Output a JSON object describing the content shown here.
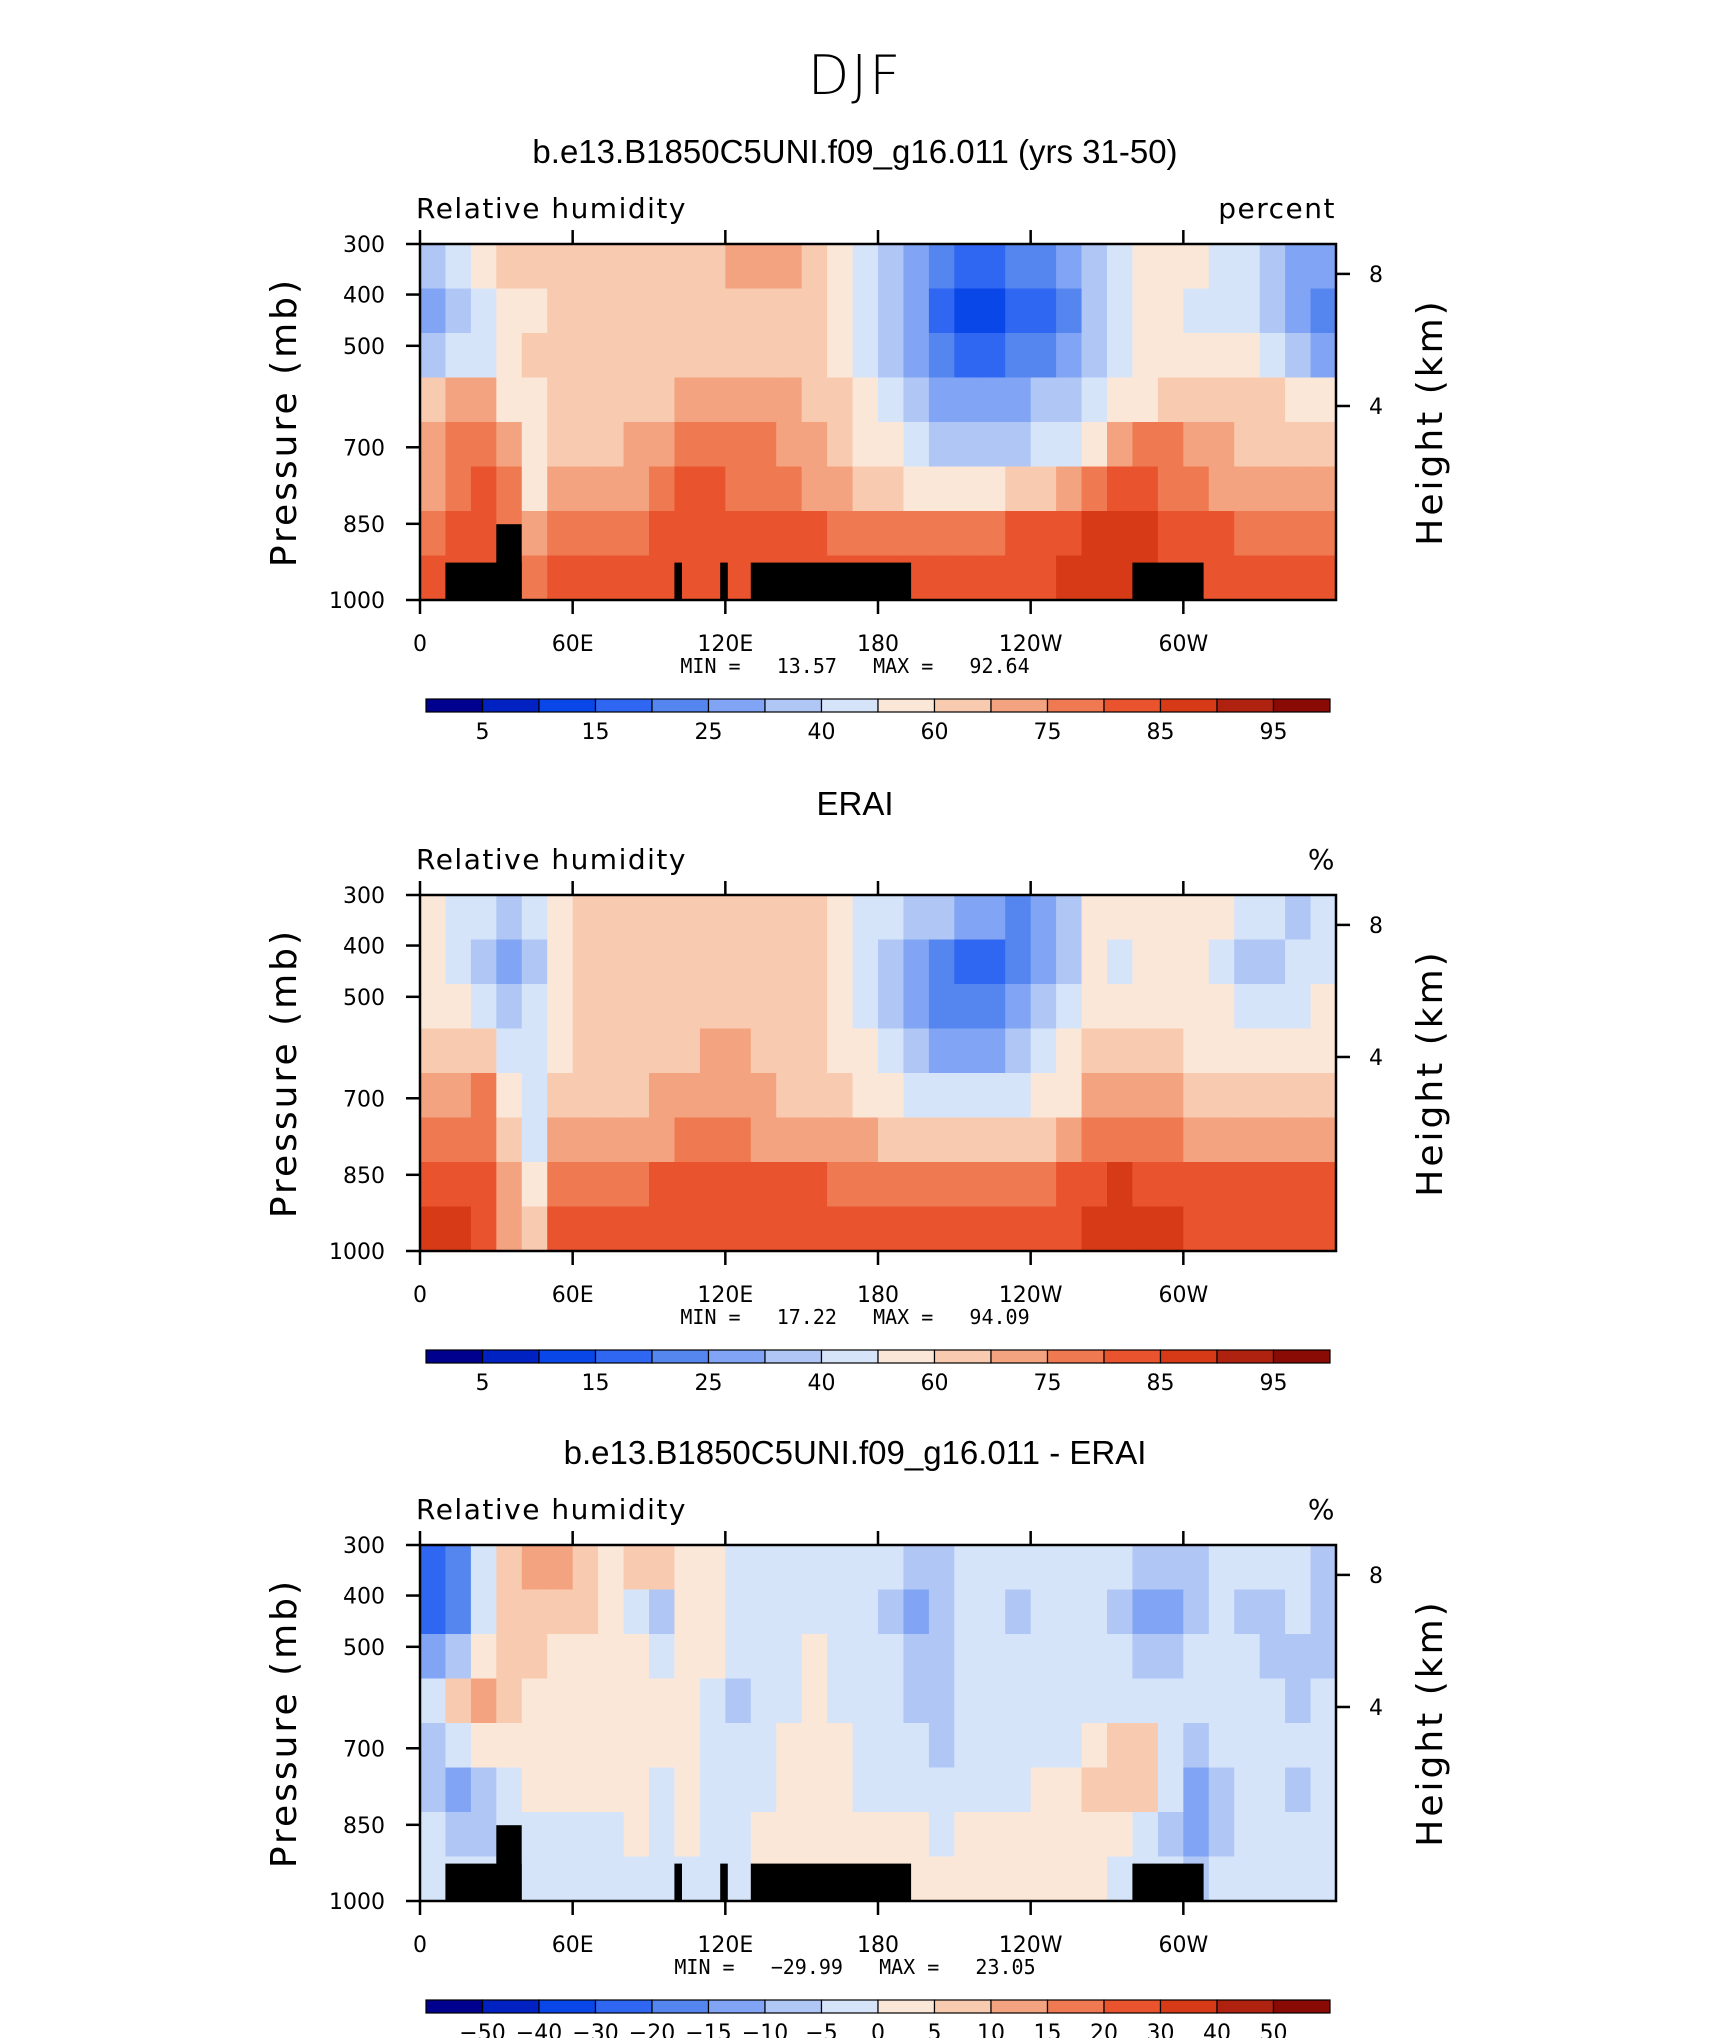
{
  "figure": {
    "title": "DJF"
  },
  "chart_data": [
    {
      "type": "heatmap",
      "title": "b.e13.B1850C5UNI.f09_g16.011 (yrs 31-50)",
      "left_label": "Relative humidity",
      "right_label": "percent",
      "ylabel": "Pressure (mb)",
      "ylabel_right": "Height (km)",
      "x_ticks": [
        "0",
        "60E",
        "120E",
        "180",
        "120W",
        "60W"
      ],
      "y_ticks": [
        "300",
        "400",
        "500",
        "700",
        "850",
        "1000"
      ],
      "y2_ticks": [
        "8",
        "4"
      ],
      "stats": {
        "min_label": "MIN =",
        "min": "13.57",
        "max_label": "MAX =",
        "max": "92.64"
      },
      "colorbar": {
        "labels": [
          "5",
          "15",
          "25",
          "40",
          "60",
          "75",
          "85",
          "95"
        ],
        "colors": [
          "#00008f",
          "#0022c2",
          "#0a47e8",
          "#2f66f2",
          "#5585ee",
          "#81a5f4",
          "#b0c6f5",
          "#d6e4fa",
          "#fbe7d8",
          "#f8cbb0",
          "#f3a37f",
          "#ef7a52",
          "#e9532e",
          "#d63a17",
          "#b02210",
          "#8a0a06"
        ]
      },
      "field": [
        [
          6,
          7,
          8,
          9,
          9,
          9,
          9,
          9,
          9,
          9,
          9,
          9,
          10,
          10,
          10,
          9,
          8,
          7,
          6,
          5,
          4,
          3,
          3,
          4,
          4,
          5,
          6,
          7,
          8,
          8,
          8,
          7,
          7,
          6,
          5,
          5
        ],
        [
          5,
          6,
          7,
          8,
          8,
          9,
          9,
          9,
          9,
          9,
          9,
          9,
          9,
          9,
          9,
          9,
          8,
          7,
          6,
          5,
          3,
          2,
          2,
          3,
          3,
          4,
          6,
          7,
          8,
          8,
          7,
          7,
          7,
          6,
          5,
          4
        ],
        [
          6,
          7,
          7,
          8,
          9,
          9,
          9,
          9,
          9,
          9,
          9,
          9,
          9,
          9,
          9,
          9,
          8,
          7,
          6,
          5,
          4,
          3,
          3,
          4,
          4,
          5,
          6,
          7,
          8,
          8,
          8,
          8,
          8,
          7,
          6,
          5
        ],
        [
          9,
          10,
          10,
          8,
          8,
          9,
          9,
          9,
          9,
          9,
          10,
          10,
          10,
          10,
          10,
          9,
          9,
          8,
          7,
          6,
          5,
          5,
          5,
          5,
          6,
          6,
          7,
          8,
          8,
          9,
          9,
          9,
          9,
          9,
          8,
          8
        ],
        [
          10,
          11,
          11,
          10,
          8,
          9,
          9,
          9,
          10,
          10,
          11,
          11,
          11,
          11,
          10,
          10,
          9,
          8,
          8,
          7,
          6,
          6,
          6,
          6,
          7,
          7,
          8,
          10,
          11,
          11,
          10,
          10,
          9,
          9,
          9,
          9
        ],
        [
          10,
          11,
          12,
          11,
          8,
          10,
          10,
          10,
          10,
          11,
          12,
          12,
          11,
          11,
          11,
          10,
          10,
          9,
          9,
          8,
          8,
          8,
          8,
          9,
          9,
          10,
          11,
          12,
          12,
          11,
          11,
          10,
          10,
          10,
          10,
          10
        ],
        [
          11,
          12,
          12,
          11,
          10,
          11,
          11,
          11,
          11,
          12,
          12,
          12,
          12,
          12,
          12,
          12,
          11,
          11,
          11,
          11,
          11,
          11,
          11,
          12,
          12,
          12,
          13,
          13,
          13,
          12,
          12,
          12,
          11,
          11,
          11,
          11
        ],
        [
          12,
          12,
          12,
          12,
          11,
          12,
          12,
          12,
          12,
          12,
          12,
          12,
          12,
          12,
          12,
          12,
          12,
          12,
          12,
          12,
          12,
          12,
          12,
          12,
          12,
          13,
          13,
          13,
          13,
          12,
          12,
          12,
          12,
          12,
          12,
          12
        ]
      ],
      "terrain": [
        [
          1,
          4
        ],
        [
          3,
          4
        ],
        [
          10,
          10.3
        ],
        [
          11.8,
          12.1
        ],
        [
          13,
          19.3
        ],
        [
          28,
          30.8
        ]
      ]
    },
    {
      "type": "heatmap",
      "title": "ERAI",
      "left_label": "Relative humidity",
      "right_label": "%",
      "ylabel": "Pressure (mb)",
      "ylabel_right": "Height (km)",
      "x_ticks": [
        "0",
        "60E",
        "120E",
        "180",
        "120W",
        "60W"
      ],
      "y_ticks": [
        "300",
        "400",
        "500",
        "700",
        "850",
        "1000"
      ],
      "y2_ticks": [
        "8",
        "4"
      ],
      "stats": {
        "min_label": "MIN =",
        "min": "17.22",
        "max_label": "MAX =",
        "max": "94.09"
      },
      "colorbar": {
        "labels": [
          "5",
          "15",
          "25",
          "40",
          "60",
          "75",
          "85",
          "95"
        ],
        "colors": [
          "#00008f",
          "#0022c2",
          "#0a47e8",
          "#2f66f2",
          "#5585ee",
          "#81a5f4",
          "#b0c6f5",
          "#d6e4fa",
          "#fbe7d8",
          "#f8cbb0",
          "#f3a37f",
          "#ef7a52",
          "#e9532e",
          "#d63a17",
          "#b02210",
          "#8a0a06"
        ]
      },
      "field": [
        [
          8,
          7,
          7,
          6,
          7,
          8,
          9,
          9,
          9,
          9,
          9,
          9,
          9,
          9,
          9,
          9,
          8,
          7,
          7,
          6,
          6,
          5,
          5,
          4,
          5,
          6,
          8,
          8,
          8,
          8,
          8,
          8,
          7,
          7,
          6,
          7
        ],
        [
          8,
          7,
          6,
          5,
          6,
          8,
          9,
          9,
          9,
          9,
          9,
          9,
          9,
          9,
          9,
          9,
          8,
          7,
          6,
          5,
          4,
          3,
          3,
          4,
          5,
          6,
          8,
          7,
          8,
          8,
          8,
          7,
          6,
          6,
          7,
          7
        ],
        [
          8,
          8,
          7,
          6,
          7,
          8,
          9,
          9,
          9,
          9,
          9,
          9,
          9,
          9,
          9,
          9,
          8,
          7,
          6,
          5,
          4,
          4,
          4,
          5,
          6,
          7,
          8,
          8,
          8,
          8,
          8,
          8,
          7,
          7,
          7,
          8
        ],
        [
          9,
          9,
          9,
          7,
          7,
          8,
          9,
          9,
          9,
          9,
          9,
          10,
          10,
          9,
          9,
          9,
          8,
          8,
          7,
          6,
          5,
          5,
          5,
          6,
          7,
          8,
          9,
          9,
          9,
          9,
          8,
          8,
          8,
          8,
          8,
          8
        ],
        [
          10,
          10,
          11,
          8,
          7,
          9,
          9,
          9,
          9,
          10,
          10,
          10,
          10,
          10,
          9,
          9,
          9,
          8,
          8,
          7,
          7,
          7,
          7,
          7,
          8,
          8,
          10,
          10,
          10,
          10,
          9,
          9,
          9,
          9,
          9,
          9
        ],
        [
          11,
          11,
          11,
          9,
          7,
          10,
          10,
          10,
          10,
          10,
          11,
          11,
          11,
          10,
          10,
          10,
          10,
          10,
          9,
          9,
          9,
          9,
          9,
          9,
          9,
          10,
          11,
          11,
          11,
          11,
          10,
          10,
          10,
          10,
          10,
          10
        ],
        [
          12,
          12,
          12,
          10,
          8,
          11,
          11,
          11,
          11,
          12,
          12,
          12,
          12,
          12,
          12,
          12,
          11,
          11,
          11,
          11,
          11,
          11,
          11,
          11,
          11,
          12,
          12,
          13,
          12,
          12,
          12,
          12,
          12,
          12,
          12,
          12
        ],
        [
          13,
          13,
          12,
          10,
          9,
          12,
          12,
          12,
          12,
          12,
          12,
          12,
          12,
          12,
          12,
          12,
          12,
          12,
          12,
          12,
          12,
          12,
          12,
          12,
          12,
          12,
          13,
          13,
          13,
          13,
          12,
          12,
          12,
          12,
          12,
          12
        ]
      ],
      "terrain": []
    },
    {
      "type": "heatmap",
      "title": "b.e13.B1850C5UNI.f09_g16.011 - ERAI",
      "left_label": "Relative humidity",
      "right_label": "%",
      "ylabel": "Pressure (mb)",
      "ylabel_right": "Height (km)",
      "x_ticks": [
        "0",
        "60E",
        "120E",
        "180",
        "120W",
        "60W"
      ],
      "y_ticks": [
        "300",
        "400",
        "500",
        "700",
        "850",
        "1000"
      ],
      "y2_ticks": [
        "8",
        "4"
      ],
      "stats": {
        "min_label": "MIN =",
        "min": "−29.99",
        "max_label": "MAX =",
        "max": "23.05"
      },
      "colorbar": {
        "labels": [
          "−50",
          "−40",
          "−30",
          "−20",
          "−15",
          "−10",
          "−5",
          "0",
          "5",
          "10",
          "15",
          "20",
          "30",
          "40",
          "50"
        ],
        "colors": [
          "#00008f",
          "#0022c2",
          "#0a47e8",
          "#2f66f2",
          "#5585ee",
          "#81a5f4",
          "#b0c6f5",
          "#d6e4fa",
          "#fbe7d8",
          "#f8cbb0",
          "#f3a37f",
          "#ef7a52",
          "#e9532e",
          "#d63a17",
          "#b02210",
          "#8a0a06"
        ]
      },
      "field": [
        [
          3,
          4,
          7,
          9,
          10,
          10,
          9,
          8,
          9,
          9,
          8,
          8,
          7,
          7,
          7,
          7,
          7,
          7,
          7,
          6,
          6,
          7,
          7,
          7,
          7,
          7,
          7,
          7,
          6,
          6,
          6,
          7,
          7,
          7,
          7,
          6
        ],
        [
          3,
          4,
          7,
          9,
          9,
          9,
          9,
          8,
          7,
          6,
          8,
          8,
          7,
          7,
          7,
          7,
          7,
          7,
          6,
          5,
          6,
          7,
          7,
          6,
          7,
          7,
          7,
          6,
          5,
          5,
          6,
          7,
          6,
          6,
          7,
          6
        ],
        [
          5,
          6,
          8,
          9,
          9,
          8,
          8,
          8,
          8,
          7,
          8,
          8,
          7,
          7,
          7,
          8,
          7,
          7,
          7,
          6,
          6,
          7,
          7,
          7,
          7,
          7,
          7,
          7,
          6,
          6,
          7,
          7,
          7,
          6,
          6,
          6
        ],
        [
          7,
          9,
          10,
          9,
          8,
          8,
          8,
          8,
          8,
          8,
          8,
          7,
          6,
          7,
          7,
          8,
          7,
          7,
          7,
          6,
          6,
          7,
          7,
          7,
          7,
          7,
          7,
          7,
          7,
          7,
          7,
          7,
          7,
          7,
          6,
          7
        ],
        [
          6,
          7,
          8,
          8,
          8,
          8,
          8,
          8,
          8,
          8,
          8,
          7,
          7,
          7,
          8,
          8,
          8,
          7,
          7,
          7,
          6,
          7,
          7,
          7,
          7,
          7,
          8,
          9,
          9,
          7,
          6,
          7,
          7,
          7,
          7,
          7
        ],
        [
          6,
          5,
          6,
          7,
          8,
          8,
          8,
          8,
          8,
          7,
          8,
          7,
          7,
          7,
          8,
          8,
          8,
          7,
          7,
          7,
          7,
          7,
          7,
          7,
          8,
          8,
          9,
          9,
          9,
          7,
          5,
          6,
          7,
          7,
          6,
          7
        ],
        [
          7,
          6,
          6,
          7,
          7,
          7,
          7,
          7,
          8,
          7,
          8,
          7,
          7,
          8,
          8,
          8,
          8,
          8,
          8,
          8,
          7,
          8,
          8,
          8,
          8,
          8,
          8,
          8,
          7,
          6,
          5,
          6,
          7,
          7,
          7,
          7
        ],
        [
          7,
          7,
          7,
          7,
          7,
          7,
          7,
          7,
          7,
          7,
          7,
          7,
          7,
          8,
          8,
          8,
          8,
          8,
          8,
          8,
          8,
          8,
          8,
          8,
          8,
          8,
          8,
          7,
          7,
          7,
          6,
          7,
          7,
          7,
          7,
          7
        ]
      ],
      "terrain": [
        [
          1,
          4
        ],
        [
          3,
          4
        ],
        [
          10,
          10.3
        ],
        [
          11.8,
          12.1
        ],
        [
          13,
          19.3
        ],
        [
          28,
          30.8
        ]
      ]
    }
  ]
}
